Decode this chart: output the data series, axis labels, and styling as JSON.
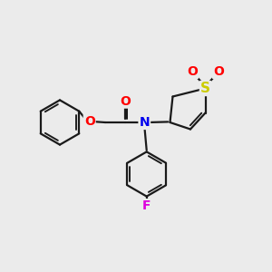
{
  "bg_color": "#ebebeb",
  "bond_color": "#1a1a1a",
  "bond_width": 1.6,
  "atom_colors": {
    "O": "#ff0000",
    "N": "#0000ee",
    "S": "#cccc00",
    "F": "#dd00dd",
    "C": "#1a1a1a"
  },
  "font_size": 10,
  "figsize": [
    3.0,
    3.0
  ],
  "dpi": 100,
  "xlim": [
    0,
    10
  ],
  "ylim": [
    0,
    10
  ]
}
